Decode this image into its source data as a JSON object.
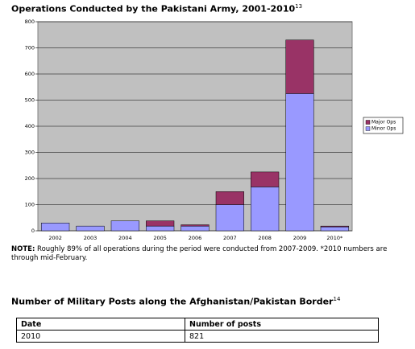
{
  "chart_data": {
    "type": "stacked-bar",
    "title": "Operations Conducted by the Pakistani Army, 2001-2010",
    "title_ref": "13",
    "categories": [
      "2002",
      "2003",
      "2004",
      "2005",
      "2006",
      "2007",
      "2008",
      "2009",
      "2010*"
    ],
    "series": [
      {
        "name": "Minor Ops",
        "color": "#9999ff",
        "values": [
          30,
          18,
          38,
          18,
          18,
          100,
          168,
          525,
          15
        ]
      },
      {
        "name": "Major Ops",
        "color": "#993366",
        "values": [
          0,
          0,
          0,
          20,
          5,
          50,
          57,
          205,
          3
        ]
      }
    ],
    "ylim": [
      0,
      800
    ],
    "yticks": [
      0,
      100,
      200,
      300,
      400,
      500,
      600,
      700,
      800
    ],
    "grid": true,
    "legend": "right"
  },
  "note": {
    "label": "NOTE:",
    "text": "Roughly 89% of all operations during the period were conducted from 2007-2009. *2010 numbers are through mid-February."
  },
  "table": {
    "title": "Number of Military Posts along the Afghanistan/Pakistan Border",
    "title_ref": "14",
    "header": [
      "Date",
      "Number of posts"
    ],
    "rows": [
      [
        "2010",
        "821"
      ]
    ]
  }
}
